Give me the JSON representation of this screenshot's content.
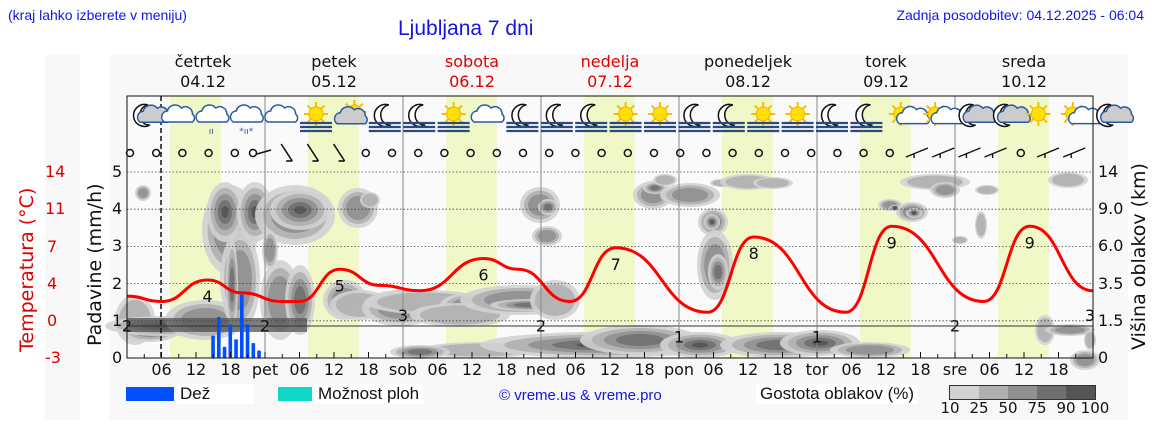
{
  "header": {
    "hint": "(kraj lahko izberete v meniju)",
    "title": "Ljubljana 7 dni",
    "updated": "Zadnja posodobitev: 04.12.2025 - 06:04"
  },
  "days": [
    {
      "name": "četrtek",
      "date": "04.12",
      "weekend": false
    },
    {
      "name": "petek",
      "date": "05.12",
      "weekend": false
    },
    {
      "name": "sobota",
      "date": "06.12",
      "weekend": true
    },
    {
      "name": "nedelja",
      "date": "07.12",
      "weekend": true
    },
    {
      "name": "ponedeljek",
      "date": "08.12",
      "weekend": false
    },
    {
      "name": "torek",
      "date": "09.12",
      "weekend": false
    },
    {
      "name": "sreda",
      "date": "10.12",
      "weekend": false
    }
  ],
  "x_ticks": [
    "06",
    "12",
    "18",
    "pet",
    "06",
    "12",
    "18",
    "sob",
    "06",
    "12",
    "18",
    "ned",
    "06",
    "12",
    "18",
    "pon",
    "06",
    "12",
    "18",
    "tor",
    "06",
    "12",
    "18",
    "sre",
    "06",
    "12",
    "18"
  ],
  "axes": {
    "left_temp_label": "Temperatura (°C)",
    "left_temp_ticks": [
      "14",
      "11",
      "7",
      "4",
      "0",
      "-3"
    ],
    "left_precip_label": "Padavine (mm/h)",
    "left_precip_ticks": [
      "5",
      "4",
      "3",
      "2",
      "1",
      "0"
    ],
    "right_label": "Višina oblakov (km)",
    "right_ticks": [
      "14",
      "9.0",
      "6.0",
      "3.5",
      "1.5",
      "0"
    ]
  },
  "legend": {
    "rain_label": "Dež",
    "rain_color": "#0050ff",
    "showers_label": "Možnost ploh",
    "showers_color": "#10d8c8",
    "credit": "© vreme.us & vreme.pro",
    "cloud_density_label": "Gostota oblakov (%)",
    "cloud_density_ticks": [
      "10",
      "25",
      "50",
      "75",
      "90",
      "100"
    ],
    "cloud_density_colors": [
      "#d2d2d2",
      "#b0b0b0",
      "#909090",
      "#707070",
      "#555555"
    ]
  },
  "colors": {
    "daylight": "#f0f8c8",
    "temperature_line": "#ff0000",
    "accent_blue": "#1414e6",
    "weekend_red": "#e00000"
  },
  "weather_icons": [
    "night-partly-cloudy",
    "cloudy",
    "cloudy-light-rain",
    "cloudy-sleet",
    "cloudy",
    "sunny-fog",
    "partly-cloudy",
    "night-fog",
    "night-fog",
    "sunny-fog",
    "cloudy",
    "night-fog",
    "night-fog",
    "night-fog",
    "sunny-fog",
    "sunny-fog",
    "night-fog",
    "night-fog",
    "sunny-fog",
    "sunny-fog",
    "night-fog",
    "night-fog",
    "sunny-partly-cloudy",
    "sunny-partly-cloudy",
    "night-partly-cloudy",
    "night-partly-cloudy",
    "sunny",
    "sunny-partly-cloudy",
    "night-cloudy"
  ],
  "chart_data": {
    "type": "line",
    "title": "Ljubljana 7 dni",
    "x_label": "",
    "x_range": [
      "04.12 00:00",
      "10.12 24:00"
    ],
    "series": [
      {
        "name": "Temperatura (°C)",
        "color": "#ff0000",
        "axis": "left-temp",
        "ylim": [
          -3,
          14
        ],
        "points": [
          {
            "t": "04.12 00",
            "v": 2.5
          },
          {
            "t": "04.12 06",
            "v": 2
          },
          {
            "t": "04.12 14",
            "v": 4
          },
          {
            "t": "04.12 20",
            "v": 2.8
          },
          {
            "t": "05.12 03",
            "v": 2
          },
          {
            "t": "05.12 06",
            "v": 2
          },
          {
            "t": "05.12 13",
            "v": 5
          },
          {
            "t": "05.12 20",
            "v": 3.5
          },
          {
            "t": "06.12 03",
            "v": 3
          },
          {
            "t": "06.12 14",
            "v": 6
          },
          {
            "t": "06.12 20",
            "v": 5
          },
          {
            "t": "07.12 05",
            "v": 2
          },
          {
            "t": "07.12 13",
            "v": 7
          },
          {
            "t": "08.12 05",
            "v": 1
          },
          {
            "t": "08.12 13",
            "v": 8
          },
          {
            "t": "09.12 05",
            "v": 1
          },
          {
            "t": "09.12 13",
            "v": 9
          },
          {
            "t": "10.12 05",
            "v": 2
          },
          {
            "t": "10.12 13",
            "v": 9
          },
          {
            "t": "10.12 24",
            "v": 3
          }
        ],
        "labels": [
          {
            "t": "04.12 00",
            "v": 2
          },
          {
            "t": "04.12 14",
            "v": 4
          },
          {
            "t": "05.12 00",
            "v": 2
          },
          {
            "t": "05.12 13",
            "v": 5
          },
          {
            "t": "06.12 00",
            "v": 3
          },
          {
            "t": "06.12 14",
            "v": 6
          },
          {
            "t": "07.12 00",
            "v": 2
          },
          {
            "t": "07.12 13",
            "v": 7
          },
          {
            "t": "08.12 00",
            "v": 1
          },
          {
            "t": "08.12 13",
            "v": 8
          },
          {
            "t": "09.12 00",
            "v": 1
          },
          {
            "t": "09.12 13",
            "v": 9
          },
          {
            "t": "10.12 00",
            "v": 2
          },
          {
            "t": "10.12 13",
            "v": 9
          },
          {
            "t": "10.12 24",
            "v": 3
          }
        ]
      },
      {
        "name": "Dež (mm/h)",
        "type": "bar",
        "color": "#0050ff",
        "axis": "left-precip",
        "ylim": [
          0,
          5
        ],
        "points": [
          {
            "t": "04.12 15",
            "v": 0.6
          },
          {
            "t": "04.12 16",
            "v": 1.1
          },
          {
            "t": "04.12 17",
            "v": 0.3
          },
          {
            "t": "04.12 18",
            "v": 0.9
          },
          {
            "t": "04.12 19",
            "v": 0.5
          },
          {
            "t": "04.12 20",
            "v": 1.7
          },
          {
            "t": "04.12 21",
            "v": 0.9
          },
          {
            "t": "04.12 22",
            "v": 0.4
          },
          {
            "t": "04.12 23",
            "v": 0.2
          }
        ]
      }
    ],
    "right_axis": {
      "label": "Višina oblakov (km)",
      "ticks": [
        0,
        1.5,
        3.5,
        6.0,
        9.0,
        14
      ]
    },
    "left_precip_axis": {
      "label": "Padavine (mm/h)",
      "ticks": [
        0,
        1,
        2,
        3,
        4,
        5
      ]
    },
    "left_temp_axis": {
      "label": "Temperatura (°C)",
      "ticks": [
        -3,
        0,
        4,
        7,
        11,
        14
      ]
    },
    "grid": true,
    "legend_position": "bottom",
    "current_time_marker": "04.12 06:00"
  }
}
